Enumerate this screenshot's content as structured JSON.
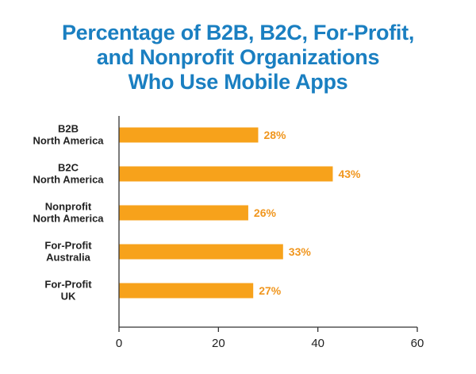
{
  "title_lines": [
    "Percentage of B2B, B2C, For-Profit,",
    "and Nonprofit Organizations",
    "Who Use Mobile Apps"
  ],
  "colors": {
    "title": "#1a7fc1",
    "bar": "#f7a21b",
    "value_label": "#f0961e",
    "axis": "#333333"
  },
  "chart_data": {
    "type": "bar",
    "orientation": "horizontal",
    "title": "Percentage of B2B, B2C, For-Profit, and Nonprofit Organizations Who Use Mobile Apps",
    "categories": [
      [
        "B2B",
        "North America"
      ],
      [
        "B2C",
        "North America"
      ],
      [
        "Nonprofit",
        "North America"
      ],
      [
        "For-Profit",
        "Australia"
      ],
      [
        "For-Profit",
        "UK"
      ]
    ],
    "values": [
      28,
      43,
      26,
      33,
      27
    ],
    "value_labels": [
      "28%",
      "43%",
      "26%",
      "33%",
      "27%"
    ],
    "xlim": [
      0,
      60
    ],
    "xticks": [
      0,
      20,
      40,
      60
    ],
    "xlabel": "",
    "ylabel": "",
    "grid": false,
    "legend": "none"
  }
}
